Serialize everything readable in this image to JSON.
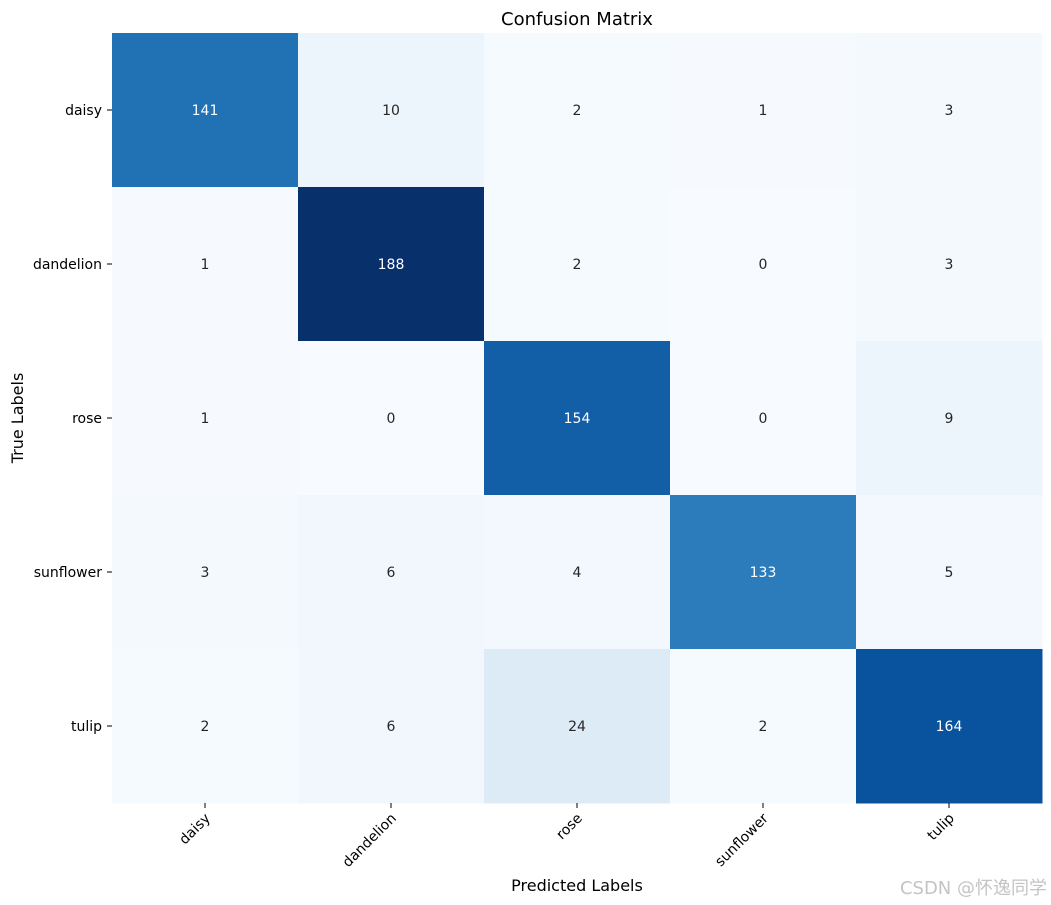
{
  "chart_data": {
    "type": "heatmap",
    "title": "Confusion Matrix",
    "xlabel": "Predicted Labels",
    "ylabel": "True Labels",
    "x_categories": [
      "daisy",
      "dandelion",
      "rose",
      "sunflower",
      "tulip"
    ],
    "y_categories": [
      "daisy",
      "dandelion",
      "rose",
      "sunflower",
      "tulip"
    ],
    "values": [
      [
        141,
        10,
        2,
        1,
        3
      ],
      [
        1,
        188,
        2,
        0,
        3
      ],
      [
        1,
        0,
        154,
        0,
        9
      ],
      [
        3,
        6,
        4,
        133,
        5
      ],
      [
        2,
        6,
        24,
        2,
        164
      ]
    ],
    "colormap": "Blues",
    "colorbar": false,
    "value_range": [
      0,
      188
    ]
  },
  "watermark": "CSDN @怀逸同学"
}
